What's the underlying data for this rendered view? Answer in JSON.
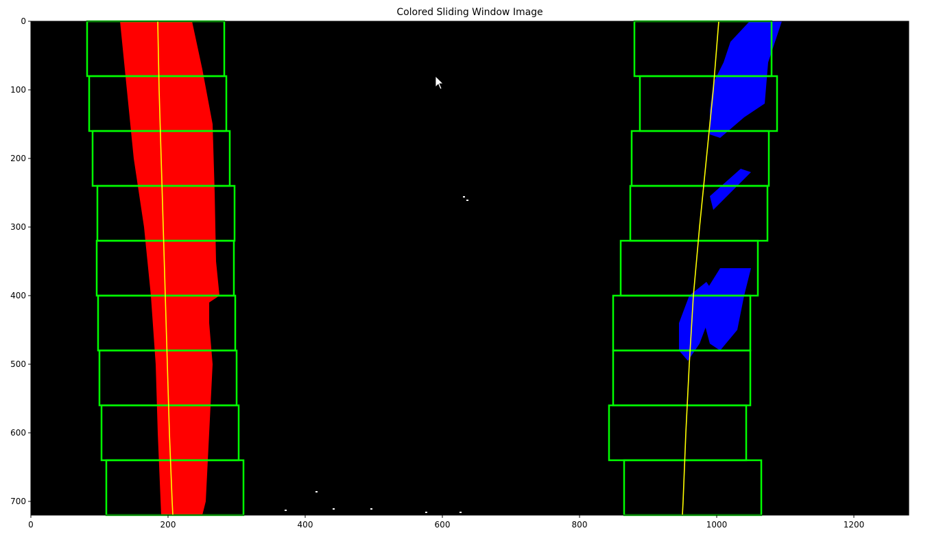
{
  "chart_data": {
    "type": "image",
    "title": "Colored Sliding Window Image",
    "xlim": [
      0,
      1280
    ],
    "ylim": [
      720,
      0
    ],
    "x_ticks": [
      0,
      200,
      400,
      600,
      800,
      1000,
      1200
    ],
    "y_ticks": [
      0,
      100,
      200,
      300,
      400,
      500,
      600,
      700
    ],
    "x_tick_labels": [
      "0",
      "200",
      "400",
      "600",
      "800",
      "1000",
      "1200"
    ],
    "y_tick_labels": [
      "0",
      "100",
      "200",
      "300",
      "400",
      "500",
      "600",
      "700"
    ],
    "background_color": "#000000",
    "window_color": "#00ff00",
    "left_lane_color": "#ff0000",
    "right_lane_color": "#0000ff",
    "fit_line_color": "#ffff00",
    "noise_color": "#ffffff",
    "left_windows": [
      {
        "x0": 82,
        "x1": 282,
        "y0": 0,
        "y1": 80
      },
      {
        "x0": 85,
        "x1": 285,
        "y0": 80,
        "y1": 160
      },
      {
        "x0": 90,
        "x1": 290,
        "y0": 160,
        "y1": 240
      },
      {
        "x0": 97,
        "x1": 297,
        "y0": 240,
        "y1": 320
      },
      {
        "x0": 96,
        "x1": 296,
        "y0": 320,
        "y1": 400
      },
      {
        "x0": 98,
        "x1": 298,
        "y0": 400,
        "y1": 480
      },
      {
        "x0": 100,
        "x1": 300,
        "y0": 480,
        "y1": 560
      },
      {
        "x0": 103,
        "x1": 303,
        "y0": 560,
        "y1": 640
      },
      {
        "x0": 110,
        "x1": 310,
        "y0": 640,
        "y1": 720
      }
    ],
    "right_windows": [
      {
        "x0": 880,
        "x1": 1080,
        "y0": 0,
        "y1": 80
      },
      {
        "x0": 888,
        "x1": 1088,
        "y0": 80,
        "y1": 160
      },
      {
        "x0": 876,
        "x1": 1076,
        "y0": 160,
        "y1": 240
      },
      {
        "x0": 874,
        "x1": 1074,
        "y0": 240,
        "y1": 320
      },
      {
        "x0": 860,
        "x1": 1060,
        "y0": 320,
        "y1": 400
      },
      {
        "x0": 849,
        "x1": 1049,
        "y0": 400,
        "y1": 480
      },
      {
        "x0": 849,
        "x1": 1049,
        "y0": 480,
        "y1": 560
      },
      {
        "x0": 843,
        "x1": 1043,
        "y0": 560,
        "y1": 640
      },
      {
        "x0": 865,
        "x1": 1065,
        "y0": 640,
        "y1": 720
      }
    ],
    "left_fit": [
      [
        0,
        185
      ],
      [
        100,
        187
      ],
      [
        200,
        190
      ],
      [
        300,
        193
      ],
      [
        400,
        196
      ],
      [
        500,
        199
      ],
      [
        600,
        202
      ],
      [
        700,
        206
      ],
      [
        720,
        207
      ]
    ],
    "right_fit": [
      [
        0,
        1003
      ],
      [
        100,
        995
      ],
      [
        200,
        985
      ],
      [
        300,
        975
      ],
      [
        400,
        966
      ],
      [
        500,
        960
      ],
      [
        600,
        955
      ],
      [
        700,
        951
      ],
      [
        720,
        950
      ]
    ],
    "left_lane_outline": [
      [
        0,
        130
      ],
      [
        0,
        235
      ],
      [
        70,
        250
      ],
      [
        150,
        265
      ],
      [
        250,
        268
      ],
      [
        350,
        270
      ],
      [
        400,
        275
      ],
      [
        410,
        260
      ],
      [
        440,
        260
      ],
      [
        500,
        265
      ],
      [
        600,
        260
      ],
      [
        700,
        255
      ],
      [
        720,
        250
      ],
      [
        720,
        190
      ],
      [
        600,
        185
      ],
      [
        500,
        182
      ],
      [
        400,
        175
      ],
      [
        300,
        165
      ],
      [
        200,
        150
      ],
      [
        100,
        140
      ]
    ],
    "right_lane_blobs": [
      [
        [
          0,
          1048
        ],
        [
          0,
          1095
        ],
        [
          60,
          1075
        ],
        [
          120,
          1070
        ],
        [
          140,
          1040
        ],
        [
          170,
          1005
        ],
        [
          165,
          990
        ],
        [
          130,
          990
        ],
        [
          90,
          995
        ],
        [
          60,
          1010
        ],
        [
          30,
          1020
        ]
      ],
      [
        [
          215,
          1035
        ],
        [
          220,
          1050
        ],
        [
          250,
          1020
        ],
        [
          270,
          1000
        ],
        [
          275,
          995
        ],
        [
          255,
          990
        ]
      ],
      [
        [
          360,
          1005
        ],
        [
          360,
          1050
        ],
        [
          400,
          1040
        ],
        [
          450,
          1030
        ],
        [
          480,
          1005
        ],
        [
          470,
          990
        ],
        [
          440,
          982
        ],
        [
          400,
          980
        ]
      ],
      [
        [
          380,
          985
        ],
        [
          395,
          995
        ],
        [
          430,
          990
        ],
        [
          470,
          975
        ],
        [
          495,
          958
        ],
        [
          480,
          945
        ],
        [
          440,
          945
        ],
        [
          400,
          960
        ]
      ]
    ],
    "noise_points": [
      [
        255,
        630
      ],
      [
        260,
        635
      ],
      [
        685,
        415
      ],
      [
        710,
        495
      ],
      [
        715,
        575
      ],
      [
        715,
        625
      ],
      [
        712,
        370
      ],
      [
        710,
        440
      ]
    ]
  }
}
